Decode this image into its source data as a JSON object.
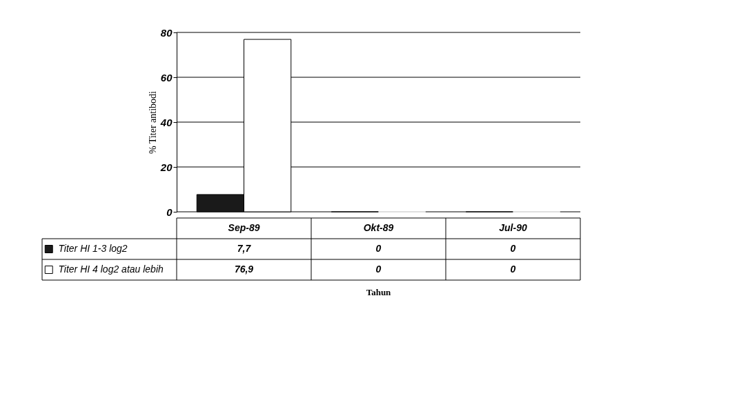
{
  "chart_data": {
    "type": "bar",
    "ylabel": "% Titer antibodi",
    "annotations": [
      "Tahun"
    ],
    "categories": [
      "Sep-89",
      "Okt-89",
      "Jul-90"
    ],
    "series": [
      {
        "name": "Titer HI 1-3 log2",
        "color": "#1a1a1a",
        "values": [
          7.7,
          0,
          0
        ],
        "value_labels": [
          "7,7",
          "0",
          "0"
        ]
      },
      {
        "name": "Titer HI 4 log2 atau lebih",
        "color": "#ffffff",
        "values": [
          76.9,
          0,
          0
        ],
        "value_labels": [
          "76,9",
          "0",
          "0"
        ]
      }
    ],
    "ylim": [
      0,
      80
    ],
    "yticks": [
      0,
      20,
      40,
      60,
      80
    ],
    "grid": "y",
    "legend": "bottom"
  }
}
